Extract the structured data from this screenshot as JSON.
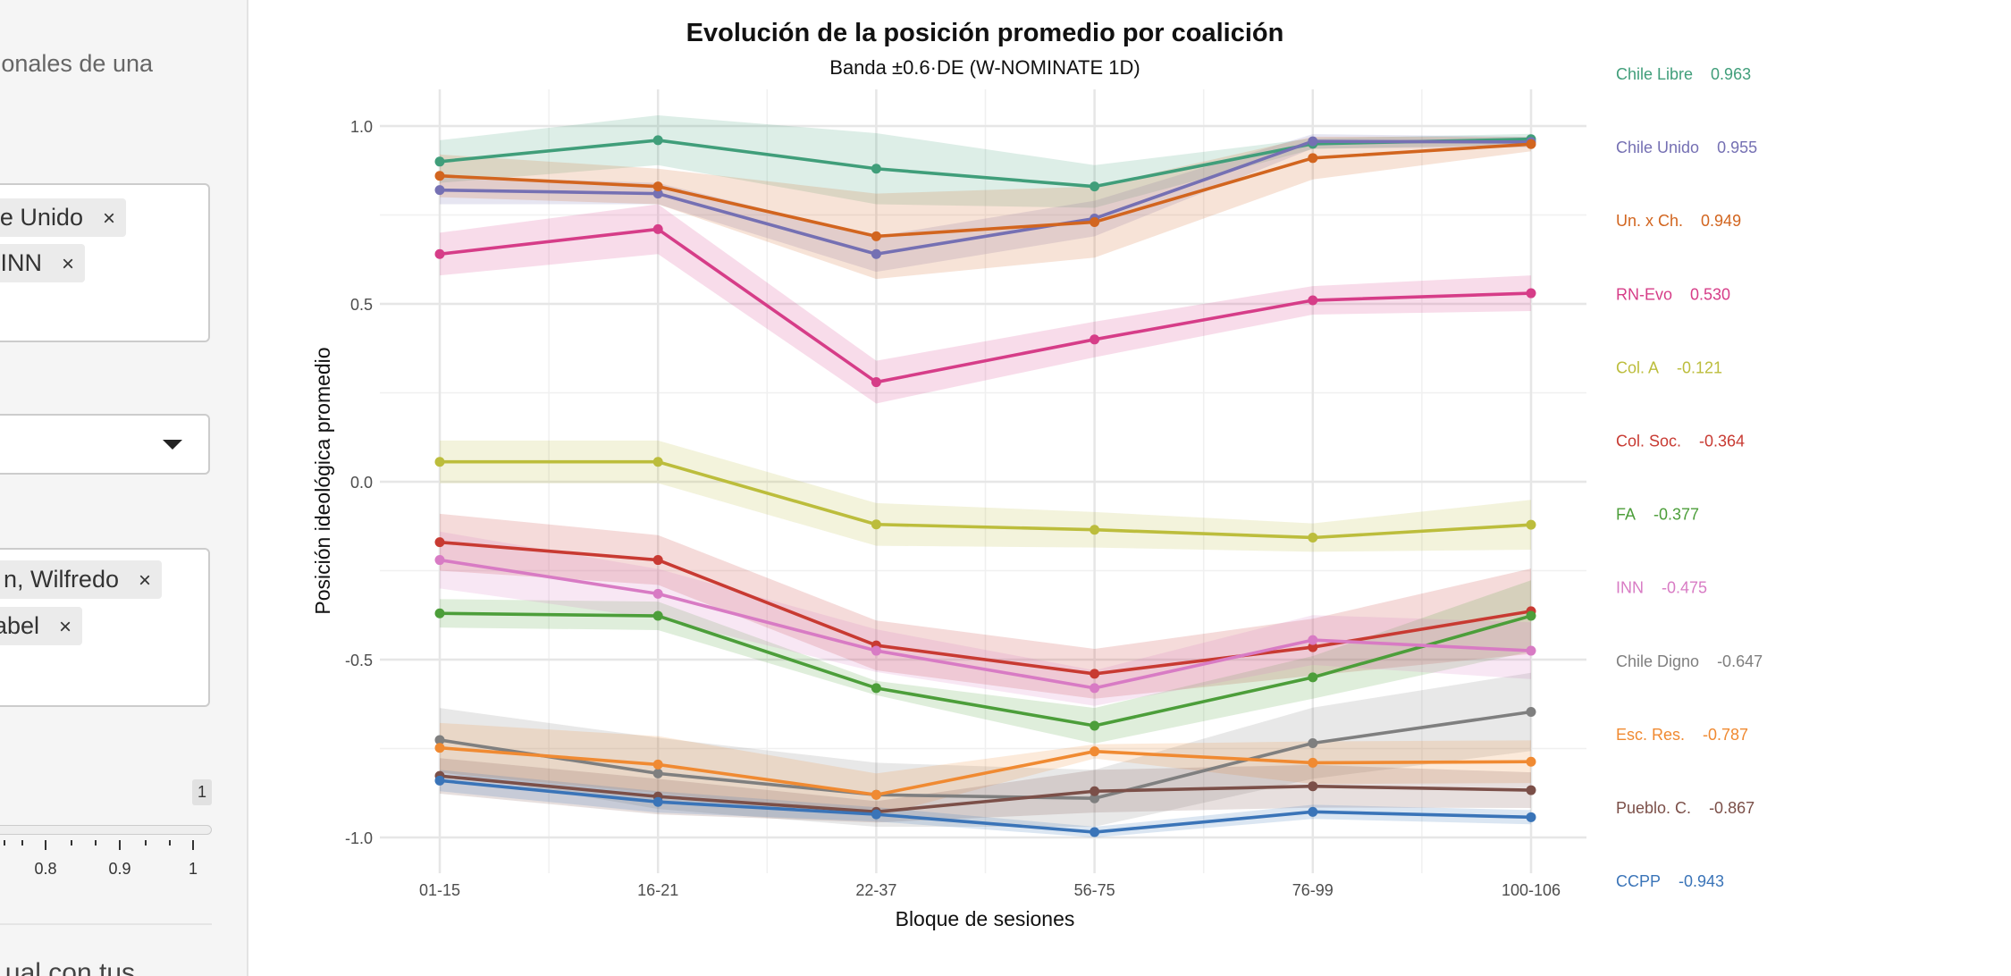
{
  "sidebar": {
    "description_fragment": "onales de una",
    "coalition_select": {
      "tags": [
        {
          "label": "e Unido",
          "remove": "×"
        },
        {
          "label": "INN",
          "remove": "×"
        }
      ]
    },
    "dropdown": {
      "caret_icon": "caret-down-icon"
    },
    "legislator_select": {
      "tags": [
        {
          "label": "n, Wilfredo",
          "remove": "×"
        },
        {
          "label": "abel",
          "remove": "×"
        }
      ]
    },
    "slider": {
      "value_badge": "1",
      "tick_labels": [
        "0.8",
        "0.9",
        "1"
      ],
      "value": 1
    },
    "bottom_text_fragment": "ual con tus"
  },
  "chart_data": {
    "type": "line",
    "title": "Evolución de la posición promedio por coalición",
    "subtitle": "Banda ±0.6·DE (W-NOMINATE 1D)",
    "xlabel": "Bloque de sesiones",
    "ylabel": "Posición ideológica promedio",
    "categories": [
      "01-15",
      "16-21",
      "22-37",
      "56-75",
      "76-99",
      "100-106"
    ],
    "ylim": [
      -1.1,
      1.1
    ],
    "yticks": [
      "1.0",
      "0.5",
      "0.0",
      "-0.5",
      "-1.0"
    ],
    "grid": true,
    "legend": "right",
    "series": [
      {
        "name": "Chile Libre",
        "final_label": "0.963",
        "color": "#409e7a",
        "values": [
          0.9,
          0.96,
          0.88,
          0.83,
          0.95,
          0.963
        ],
        "band": [
          0.06,
          0.07,
          0.1,
          0.06,
          0.015,
          0.015
        ]
      },
      {
        "name": "Chile Unido",
        "final_label": "0.955",
        "color": "#7570b3",
        "values": [
          0.82,
          0.81,
          0.64,
          0.74,
          0.957,
          0.955
        ],
        "band": [
          0.04,
          0.03,
          0.05,
          0.05,
          0.02,
          0.015
        ]
      },
      {
        "name": "Un. x Ch.",
        "final_label": "0.949",
        "color": "#d2651f",
        "values": [
          0.86,
          0.83,
          0.69,
          0.73,
          0.91,
          0.949
        ],
        "band": [
          0.06,
          0.05,
          0.12,
          0.1,
          0.06,
          0.02
        ]
      },
      {
        "name": "RN-Evo",
        "final_label": "0.530",
        "color": "#d63d88",
        "values": [
          0.64,
          0.71,
          0.28,
          0.4,
          0.51,
          0.53
        ],
        "band": [
          0.06,
          0.07,
          0.06,
          0.05,
          0.04,
          0.05
        ]
      },
      {
        "name": "Col. A",
        "final_label": "-0.121",
        "color": "#bcbd3c",
        "values": [
          0.056,
          0.056,
          -0.12,
          -0.135,
          -0.157,
          -0.121
        ],
        "band": [
          0.06,
          0.06,
          0.06,
          0.05,
          0.04,
          0.07
        ]
      },
      {
        "name": "Col. Soc.",
        "final_label": "-0.364",
        "color": "#c83a32",
        "values": [
          -0.17,
          -0.22,
          -0.46,
          -0.54,
          -0.465,
          -0.364
        ],
        "band": [
          0.08,
          0.07,
          0.07,
          0.07,
          0.08,
          0.12
        ]
      },
      {
        "name": "FA",
        "final_label": "-0.377",
        "color": "#4c9e3a",
        "values": [
          -0.37,
          -0.377,
          -0.58,
          -0.686,
          -0.55,
          -0.377
        ],
        "band": [
          0.04,
          0.04,
          0.02,
          0.05,
          0.06,
          0.1
        ]
      },
      {
        "name": "INN",
        "final_label": "-0.475",
        "color": "#d87bc4",
        "values": [
          -0.22,
          -0.315,
          -0.475,
          -0.58,
          -0.445,
          -0.475
        ],
        "band": [
          0.08,
          0.07,
          0.06,
          0.05,
          0.07,
          0.08
        ]
      },
      {
        "name": "Chile Digno",
        "final_label": "-0.647",
        "color": "#7f7f7f",
        "values": [
          -0.726,
          -0.82,
          -0.88,
          -0.89,
          -0.735,
          -0.647
        ],
        "band": [
          0.09,
          0.1,
          0.09,
          0.08,
          0.1,
          0.11
        ]
      },
      {
        "name": "Esc. Res.",
        "final_label": "-0.787",
        "color": "#f08a32",
        "values": [
          -0.748,
          -0.795,
          -0.88,
          -0.758,
          -0.79,
          -0.787
        ],
        "band": [
          0.07,
          0.08,
          0.06,
          0.02,
          0.06,
          0.06
        ]
      },
      {
        "name": "Pueblo. C.",
        "final_label": "-0.867",
        "color": "#7b4f48",
        "values": [
          -0.827,
          -0.885,
          -0.928,
          -0.87,
          -0.856,
          -0.867
        ],
        "band": [
          0.05,
          0.05,
          0.03,
          0.06,
          0.06,
          0.05
        ]
      },
      {
        "name": "CCPP",
        "final_label": "-0.943",
        "color": "#3a74b8",
        "values": [
          -0.84,
          -0.9,
          -0.935,
          -0.985,
          -0.928,
          -0.943
        ],
        "band": [
          0.03,
          0.03,
          0.02,
          0.015,
          0.02,
          0.02
        ]
      }
    ]
  }
}
